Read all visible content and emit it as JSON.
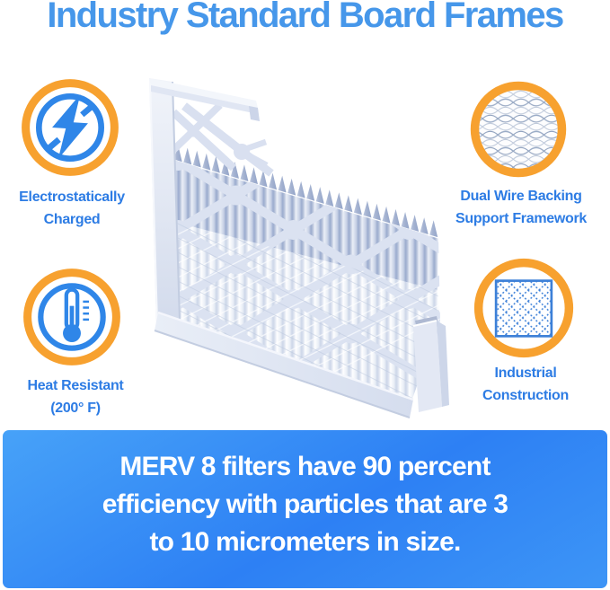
{
  "title": {
    "text": "Industry Standard Board Frames",
    "color": "#4697ea"
  },
  "features": [
    {
      "id": "electrostatically-charged",
      "icon": "lightning-bolt-icon",
      "label_lines": [
        "Electrostatically",
        "Charged"
      ]
    },
    {
      "id": "dual-wire-backing",
      "icon": "wire-mesh-icon",
      "label_lines": [
        "Dual Wire Backing",
        "Support Framework"
      ]
    },
    {
      "id": "heat-resistant",
      "icon": "thermometer-icon",
      "label_lines": [
        "Heat Resistant",
        "(200° F)"
      ]
    },
    {
      "id": "industrial-construction",
      "icon": "diamond-grid-icon",
      "label_lines": [
        "Industrial",
        "Construction"
      ]
    }
  ],
  "illustration": {
    "name": "pleated-air-filter",
    "pleat_count": 28
  },
  "banner": {
    "lines": [
      "MERV 8 filters have 90 percent",
      "efficiency with particles that are 3",
      "to 10 micrometers in size."
    ],
    "background": "#2f84f5",
    "text_color": "#ffffff"
  },
  "colors": {
    "accent_orange": "#f7a12f",
    "icon_blue": "#2f86e8",
    "label_blue": "#2d7ce4",
    "title_blue": "#4697ea"
  }
}
